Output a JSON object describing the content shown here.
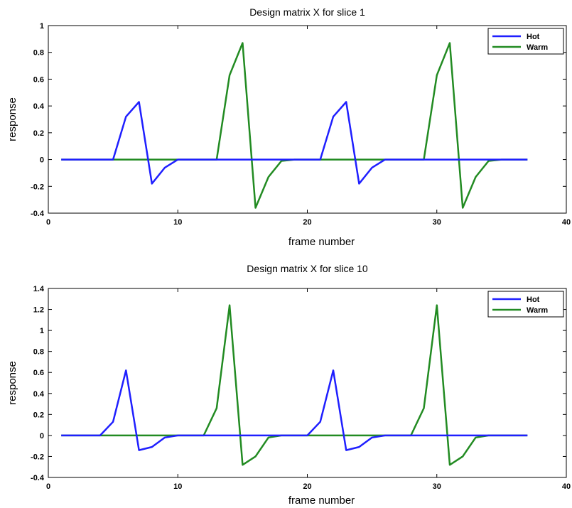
{
  "chart_data": [
    {
      "type": "line",
      "title": "Design matrix X for slice 1",
      "xlabel": "frame number",
      "ylabel": "response",
      "xlim": [
        0,
        40
      ],
      "ylim": [
        -0.4,
        1
      ],
      "xticks": [
        "0",
        "10",
        "20",
        "30",
        "40"
      ],
      "yticks": [
        "-0.4",
        "-0.2",
        "0",
        "0.2",
        "0.4",
        "0.6",
        "0.8",
        "1"
      ],
      "legend_placement": "top-right",
      "x": [
        1,
        2,
        3,
        4,
        5,
        6,
        7,
        8,
        9,
        10,
        11,
        12,
        13,
        14,
        15,
        16,
        17,
        18,
        19,
        20,
        21,
        22,
        23,
        24,
        25,
        26,
        27,
        28,
        29,
        30,
        31,
        32,
        33,
        34,
        35,
        36,
        37
      ],
      "series": [
        {
          "name": "Hot",
          "color": "#1f1fff",
          "values": [
            0,
            0,
            0,
            0,
            0,
            0.32,
            0.43,
            -0.18,
            -0.06,
            0,
            0,
            0,
            0,
            0,
            0,
            0,
            0,
            0,
            0,
            0,
            0,
            0.32,
            0.43,
            -0.18,
            -0.06,
            0,
            0,
            0,
            0,
            0,
            0,
            0,
            0,
            0,
            0,
            0,
            0
          ]
        },
        {
          "name": "Warm",
          "color": "#228b22",
          "values": [
            0,
            0,
            0,
            0,
            0,
            0,
            0,
            0,
            0,
            0,
            0,
            0,
            0,
            0.63,
            0.87,
            -0.36,
            -0.13,
            -0.01,
            0,
            0,
            0,
            0,
            0,
            0,
            0,
            0,
            0,
            0,
            0,
            0.63,
            0.87,
            -0.36,
            -0.13,
            -0.01,
            0,
            0,
            0
          ]
        }
      ]
    },
    {
      "type": "line",
      "title": "Design matrix X for slice 10",
      "xlabel": "frame number",
      "ylabel": "response",
      "xlim": [
        0,
        40
      ],
      "ylim": [
        -0.4,
        1.4
      ],
      "xticks": [
        "0",
        "10",
        "20",
        "30",
        "40"
      ],
      "yticks": [
        "-0.4",
        "-0.2",
        "0",
        "0.2",
        "0.4",
        "0.6",
        "0.8",
        "1",
        "1.2",
        "1.4"
      ],
      "legend_placement": "top-right",
      "x": [
        1,
        2,
        3,
        4,
        5,
        6,
        7,
        8,
        9,
        10,
        11,
        12,
        13,
        14,
        15,
        16,
        17,
        18,
        19,
        20,
        21,
        22,
        23,
        24,
        25,
        26,
        27,
        28,
        29,
        30,
        31,
        32,
        33,
        34,
        35,
        36,
        37
      ],
      "series": [
        {
          "name": "Hot",
          "color": "#1f1fff",
          "values": [
            0,
            0,
            0,
            0,
            0.13,
            0.62,
            -0.14,
            -0.11,
            -0.02,
            0,
            0,
            0,
            0,
            0,
            0,
            0,
            0,
            0,
            0,
            0,
            0.13,
            0.62,
            -0.14,
            -0.11,
            -0.02,
            0,
            0,
            0,
            0,
            0,
            0,
            0,
            0,
            0,
            0,
            0,
            0
          ]
        },
        {
          "name": "Warm",
          "color": "#228b22",
          "values": [
            0,
            0,
            0,
            0,
            0,
            0,
            0,
            0,
            0,
            0,
            0,
            0,
            0.26,
            1.24,
            -0.28,
            -0.2,
            -0.02,
            0,
            0,
            0,
            0,
            0,
            0,
            0,
            0,
            0,
            0,
            0,
            0.26,
            1.24,
            -0.28,
            -0.2,
            -0.02,
            0,
            0,
            0,
            0
          ]
        }
      ]
    }
  ]
}
